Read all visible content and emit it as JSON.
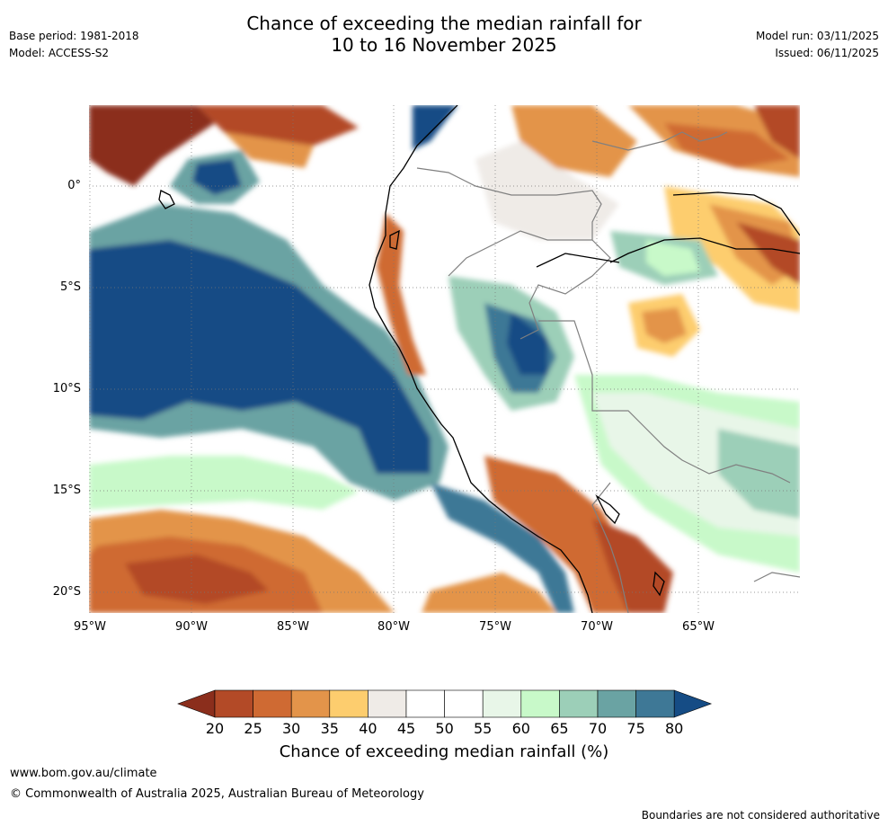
{
  "header": {
    "title_line1": "Chance of exceeding the median rainfall for",
    "title_line2": "10 to 16 November 2025",
    "base_period": "Base period: 1981-2018",
    "model": "Model: ACCESS-S2",
    "model_run": "Model run: 03/11/2025",
    "issued": "Issued: 06/11/2025"
  },
  "map": {
    "lat_labels": [
      "0°",
      "5°S",
      "10°S",
      "15°S",
      "20°S"
    ],
    "lon_labels": [
      "95°W",
      "90°W",
      "85°W",
      "80°W",
      "75°W",
      "70°W",
      "65°W"
    ]
  },
  "colorbar": {
    "ticks": [
      "20",
      "25",
      "30",
      "35",
      "40",
      "45",
      "50",
      "55",
      "60",
      "65",
      "70",
      "75",
      "80"
    ],
    "colors": [
      "#8b2e1c",
      "#b34a27",
      "#cf6a33",
      "#e3944a",
      "#fdcd6e",
      "#efebe7",
      "#ffffff",
      "#ffffff",
      "#e8f6e8",
      "#c8f9c9",
      "#9ccfb8",
      "#6aa3a3",
      "#3e7896",
      "#154c85"
    ],
    "title": "Chance of exceeding median rainfall (%)"
  },
  "footer": {
    "website": "www.bom.gov.au/climate",
    "copyright": "© Commonwealth of Australia 2025, Australian Bureau of Meteorology",
    "disclaimer": "Boundaries are not considered authoritative"
  }
}
